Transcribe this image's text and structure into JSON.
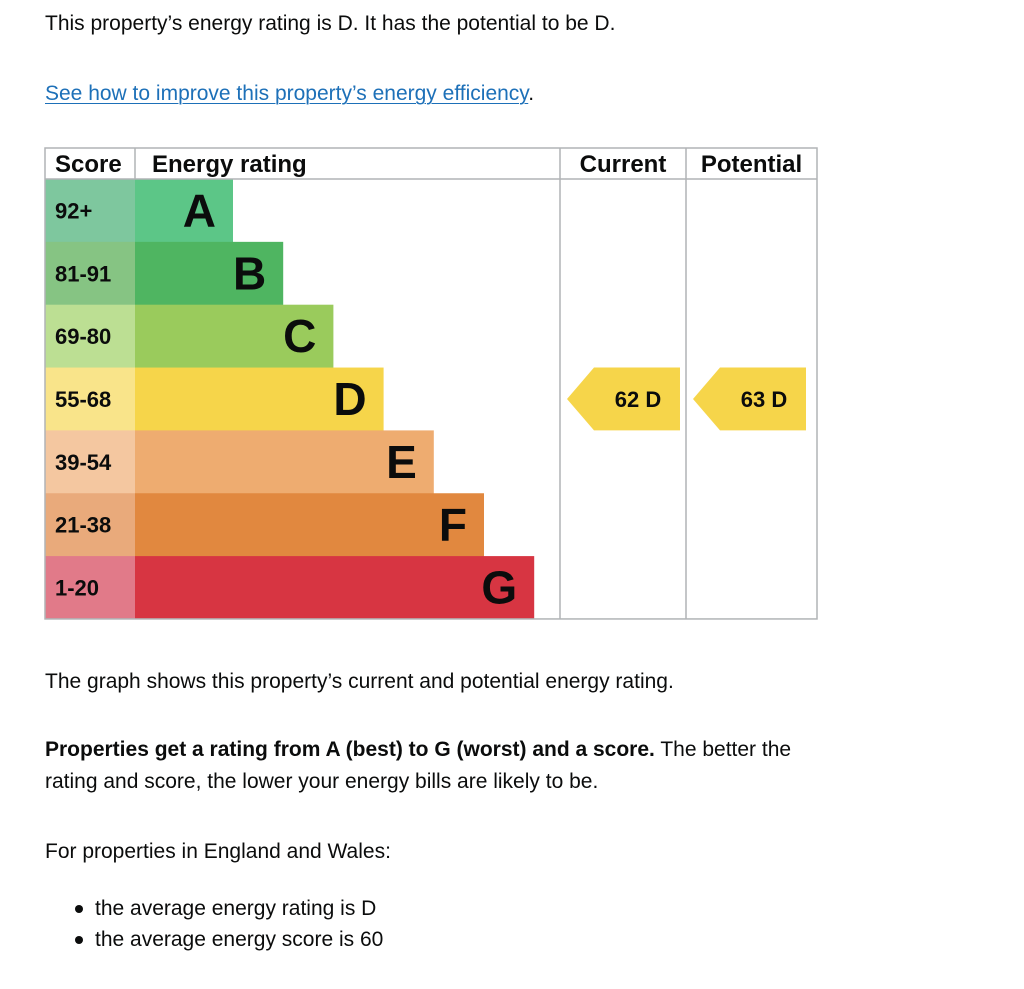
{
  "intro": {
    "text": "This property’s energy rating is D. It has the potential to be D."
  },
  "link": {
    "text": "See how to improve this property’s energy efficiency",
    "suffix": "."
  },
  "chart_data": {
    "type": "bar",
    "headers": {
      "score": "Score",
      "rating": "Energy rating",
      "current": "Current",
      "potential": "Potential"
    },
    "bands": [
      {
        "score": "92+",
        "letter": "A",
        "fill": "#00c781",
        "bg": "#7ec79e",
        "bar": "#5cc687"
      },
      {
        "score": "81-91",
        "letter": "B",
        "fill": "#19b459",
        "bg": "#86c483",
        "bar": "#4fb561"
      },
      {
        "score": "69-80",
        "letter": "C",
        "fill": "#8dce46",
        "bg": "#bcdf93",
        "bar": "#9acb5c"
      },
      {
        "score": "55-68",
        "letter": "D",
        "fill": "#ffd500",
        "bg": "#f9e48a",
        "bar": "#f6d54a"
      },
      {
        "score": "39-54",
        "letter": "E",
        "fill": "#fcaa65",
        "bg": "#f4c7a0",
        "bar": "#eeac70"
      },
      {
        "score": "21-38",
        "letter": "F",
        "fill": "#ef8023",
        "bg": "#e9aa7b",
        "bar": "#e1883f"
      },
      {
        "score": "1-20",
        "letter": "G",
        "fill": "#e9153b",
        "bg": "#e17a89",
        "bar": "#d73542"
      }
    ],
    "current": {
      "value": 62,
      "letter": "D",
      "label": "62  D",
      "color": "#f6d54a"
    },
    "potential": {
      "value": 63,
      "letter": "D",
      "label": "63  D",
      "color": "#f6d54a"
    }
  },
  "graph_text": "The graph shows this property’s current and potential energy rating.",
  "properties": {
    "bold": "Properties get a rating from A (best) to G (worst) and a score.",
    "rest": " The better the rating and score, the lower your energy bills are likely to be."
  },
  "england_wales": "For properties in England and Wales:",
  "bullets": [
    "the average energy rating is D",
    "the average energy score is 60"
  ]
}
